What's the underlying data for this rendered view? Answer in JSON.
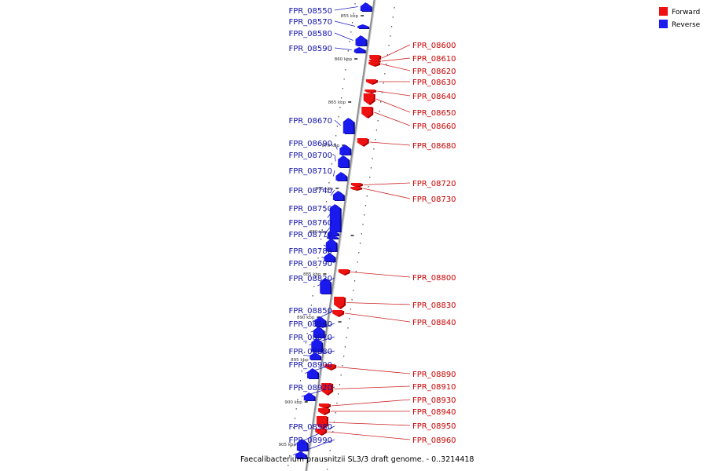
{
  "caption": "Faecalibacterium prausnitzii SL3/3 draft genome. - 0..3214418",
  "legend": [
    {
      "label": "Forward",
      "color": "#ee1111"
    },
    {
      "label": "Reverse",
      "color": "#1a1aee"
    }
  ],
  "colors": {
    "forward": "#ee1111",
    "reverse": "#1a1aee",
    "backbone": "#999999"
  },
  "scale_marks": [
    "855 kbp",
    "860 kbp",
    "865 kbp",
    "870 kbp",
    "875 kbp",
    "880 kbp",
    "885 kbp",
    "890 kbp",
    "895 kbp",
    "900 kbp",
    "905 kbp"
  ],
  "genes": [
    {
      "label": "FPR_08550",
      "strand": "reverse"
    },
    {
      "label": "FPR_08570",
      "strand": "reverse"
    },
    {
      "label": "FPR_08580",
      "strand": "reverse"
    },
    {
      "label": "FPR_08590",
      "strand": "reverse"
    },
    {
      "label": "FPR_08600",
      "strand": "forward"
    },
    {
      "label": "FPR_08610",
      "strand": "forward"
    },
    {
      "label": "FPR_08620",
      "strand": "forward"
    },
    {
      "label": "FPR_08630",
      "strand": "forward"
    },
    {
      "label": "FPR_08640",
      "strand": "forward"
    },
    {
      "label": "FPR_08650",
      "strand": "forward"
    },
    {
      "label": "FPR_08660",
      "strand": "forward"
    },
    {
      "label": "FPR_08670",
      "strand": "reverse"
    },
    {
      "label": "FPR_08680",
      "strand": "forward"
    },
    {
      "label": "FPR_08690",
      "strand": "reverse"
    },
    {
      "label": "FPR_08700",
      "strand": "reverse"
    },
    {
      "label": "FPR_08710",
      "strand": "reverse"
    },
    {
      "label": "FPR_08720",
      "strand": "forward"
    },
    {
      "label": "FPR_08730",
      "strand": "forward"
    },
    {
      "label": "FPR_08740",
      "strand": "reverse"
    },
    {
      "label": "FPR_08750",
      "strand": "reverse"
    },
    {
      "label": "FPR_08760",
      "strand": "reverse"
    },
    {
      "label": "FPR_08770",
      "strand": "reverse"
    },
    {
      "label": "FPR_08780",
      "strand": "reverse"
    },
    {
      "label": "FPR_08790",
      "strand": "reverse"
    },
    {
      "label": "FPR_08800",
      "strand": "forward"
    },
    {
      "label": "FPR_08820",
      "strand": "reverse"
    },
    {
      "label": "FPR_08830",
      "strand": "forward"
    },
    {
      "label": "FPR_08840",
      "strand": "forward"
    },
    {
      "label": "FPR_08850",
      "strand": "reverse"
    },
    {
      "label": "FPR_08860",
      "strand": "reverse"
    },
    {
      "label": "FPR_08870",
      "strand": "reverse"
    },
    {
      "label": "FPR_08880",
      "strand": "reverse"
    },
    {
      "label": "FPR_08890",
      "strand": "forward"
    },
    {
      "label": "FPR_08900",
      "strand": "reverse"
    },
    {
      "label": "FPR_08910",
      "strand": "forward"
    },
    {
      "label": "FPR_08920",
      "strand": "reverse"
    },
    {
      "label": "FPR_08930",
      "strand": "forward"
    },
    {
      "label": "FPR_08940",
      "strand": "forward"
    },
    {
      "label": "FPR_08950",
      "strand": "forward"
    },
    {
      "label": "FPR_08960",
      "strand": "forward"
    },
    {
      "label": "FPR_08980",
      "strand": "reverse"
    },
    {
      "label": "FPR_08990",
      "strand": "reverse"
    }
  ]
}
